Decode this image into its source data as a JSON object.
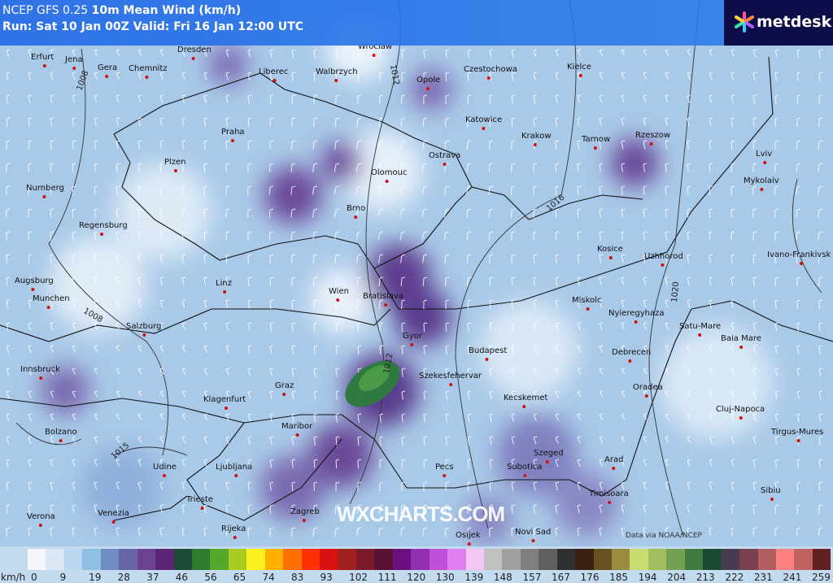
{
  "header": {
    "model": "NCEP GFS 0.25",
    "field": "10m Mean Wind (km/h)",
    "run": "Run: Sat 10 Jan 00Z Valid: Fri 16 Jan 12:00 UTC"
  },
  "logo": {
    "text": "metdesk"
  },
  "watermark": "WXCHARTS.COM",
  "credit": "Data via NOAA/NCEP",
  "cities": [
    "Erfurt",
    "Jena",
    "Gera",
    "Chemnitz",
    "Dresden",
    "Liberec",
    "Walbrzych",
    "Wroclaw",
    "Opole",
    "Czestochowa",
    "Kielce",
    "Praha",
    "Katowice",
    "Krakow",
    "Tarnow",
    "Rzeszow",
    "Lviv",
    "Plzen",
    "Ostrava",
    "Olomouc",
    "Mykolaiv",
    "Nurnberg",
    "Brno",
    "Regensburg",
    "Kosice",
    "Uzhhorod",
    "Ivano-Frankivsk",
    "Augsburg",
    "Linz",
    "Wien",
    "Bratislava",
    "Miskolc",
    "Nyieregyhaza",
    "Munchen",
    "Salzburg",
    "Satu-Mare",
    "Baia Mare",
    "Gyor",
    "Budapest",
    "Debrecen",
    "Innsbruck",
    "Szekesfehervar",
    "Graz",
    "Oradea",
    "Kecskemet",
    "Klagenfurt",
    "Cluj-Napoca",
    "Maribor",
    "Bolzano",
    "Tirgus-Mures",
    "Szeged",
    "Udine",
    "Ljubljana",
    "Pecs",
    "Subotica",
    "Arad",
    "Timisoara",
    "Sibiu",
    "Trieste",
    "Zagreb",
    "Osijek",
    "Verona",
    "Venezia",
    "Rijeka",
    "Novi Sad"
  ],
  "isobar_labels": [
    "1008",
    "1012",
    "1016",
    "1020",
    "1008",
    "1015",
    "1012"
  ],
  "colorbar": {
    "unit": "km/h",
    "ticks": [
      "0",
      "9",
      "19",
      "28",
      "37",
      "46",
      "56",
      "65",
      "74",
      "83",
      "93",
      "102",
      "111",
      "120",
      "130",
      "139",
      "148",
      "157",
      "167",
      "176",
      "185",
      "194",
      "204",
      "213",
      "222",
      "231",
      "241",
      "259"
    ],
    "colors": [
      "#f4f8fc",
      "#dce9f5",
      "#b8d6ee",
      "#8fbfe3",
      "#6f8fc4",
      "#6a64a8",
      "#6b4391",
      "#5e2576",
      "#1d4a38",
      "#2e7a2e",
      "#55a82a",
      "#a8cc22",
      "#fff020",
      "#ffb000",
      "#ff7000",
      "#ff3000",
      "#d81010",
      "#a02020",
      "#7a1a2a",
      "#5a1030",
      "#6a1080",
      "#9030b0",
      "#c050d8",
      "#e080f0",
      "#f4c8f4",
      "#c0c0c0",
      "#a0a0a0",
      "#808080",
      "#606060",
      "#303030",
      "#3a2010",
      "#6a5020",
      "#9a8a40",
      "#c8dc70",
      "#a0c060",
      "#70a050",
      "#407a40",
      "#1a4a30",
      "#4a3a50",
      "#7a4050",
      "#b06060",
      "#ff8080",
      "#c06060",
      "#602020"
    ]
  }
}
